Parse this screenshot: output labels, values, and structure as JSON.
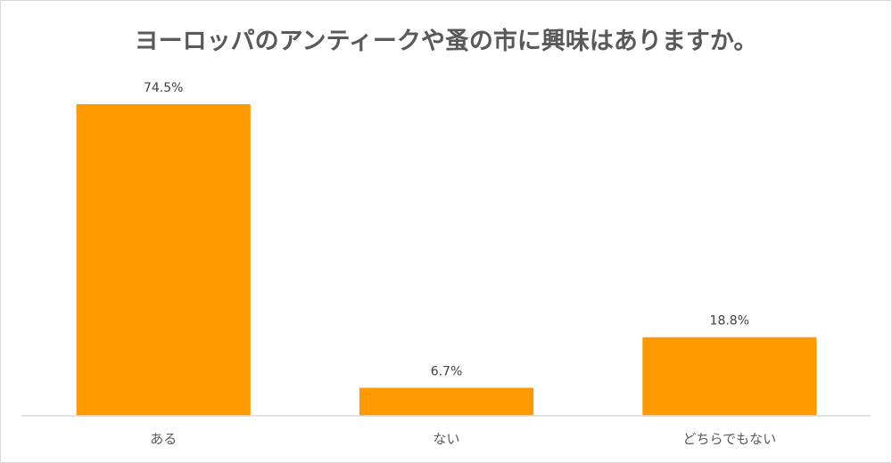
{
  "chart_data": {
    "type": "bar",
    "title": "ヨーロッパのアンティークや蚤の市に興味はありますか。",
    "categories": [
      "ある",
      "ない",
      "どちらでもない"
    ],
    "values": [
      74.5,
      6.7,
      18.8
    ],
    "value_labels": [
      "74.5%",
      "6.7%",
      "18.8%"
    ],
    "ylim": [
      0,
      100
    ],
    "grid": false,
    "legend": "none",
    "colors": {
      "bar": "#ff9900"
    }
  }
}
